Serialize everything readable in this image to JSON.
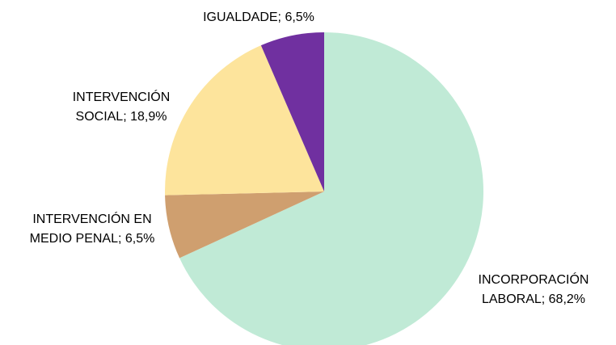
{
  "chart_data": {
    "type": "pie",
    "values": [
      68.2,
      6.5,
      18.9,
      6.5
    ],
    "value_labels": [
      [
        "INCORPORACIÓN",
        "LABORAL; 68,2%"
      ],
      [
        "INTERVENCIÓN EN",
        "MEDIO PENAL; 6,5%"
      ],
      [
        "INTERVENCIÓN",
        "SOCIAL; 18,9%"
      ],
      [
        "IGUALDADE; 6,5%"
      ]
    ],
    "colors": [
      "#c0ead6",
      "#cf9f6f",
      "#fde49c",
      "#7030a0"
    ]
  }
}
